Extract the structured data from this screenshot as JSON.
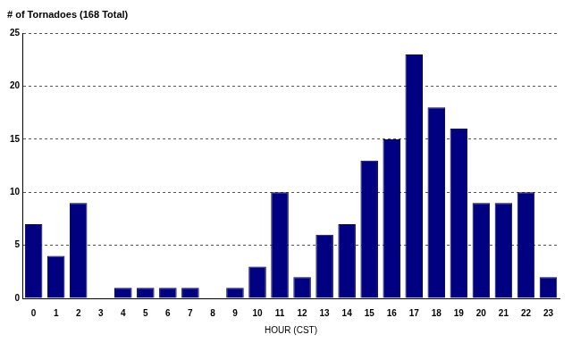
{
  "chart_data": {
    "type": "bar",
    "title": "# of Tornadoes (168 Total)",
    "x_label": "HOUR (CST)",
    "categories": [
      "0",
      "1",
      "2",
      "3",
      "4",
      "5",
      "6",
      "7",
      "8",
      "9",
      "10",
      "11",
      "12",
      "13",
      "14",
      "15",
      "16",
      "17",
      "18",
      "19",
      "20",
      "21",
      "22",
      "23"
    ],
    "values": [
      7,
      4,
      9,
      0,
      1,
      1,
      1,
      1,
      0,
      1,
      3,
      10,
      2,
      6,
      7,
      13,
      15,
      23,
      18,
      16,
      9,
      9,
      10,
      2
    ],
    "color": "#000080",
    "ylim": [
      0,
      25
    ],
    "yticks": [
      0,
      5,
      10,
      15,
      20,
      25
    ],
    "grid": true
  }
}
